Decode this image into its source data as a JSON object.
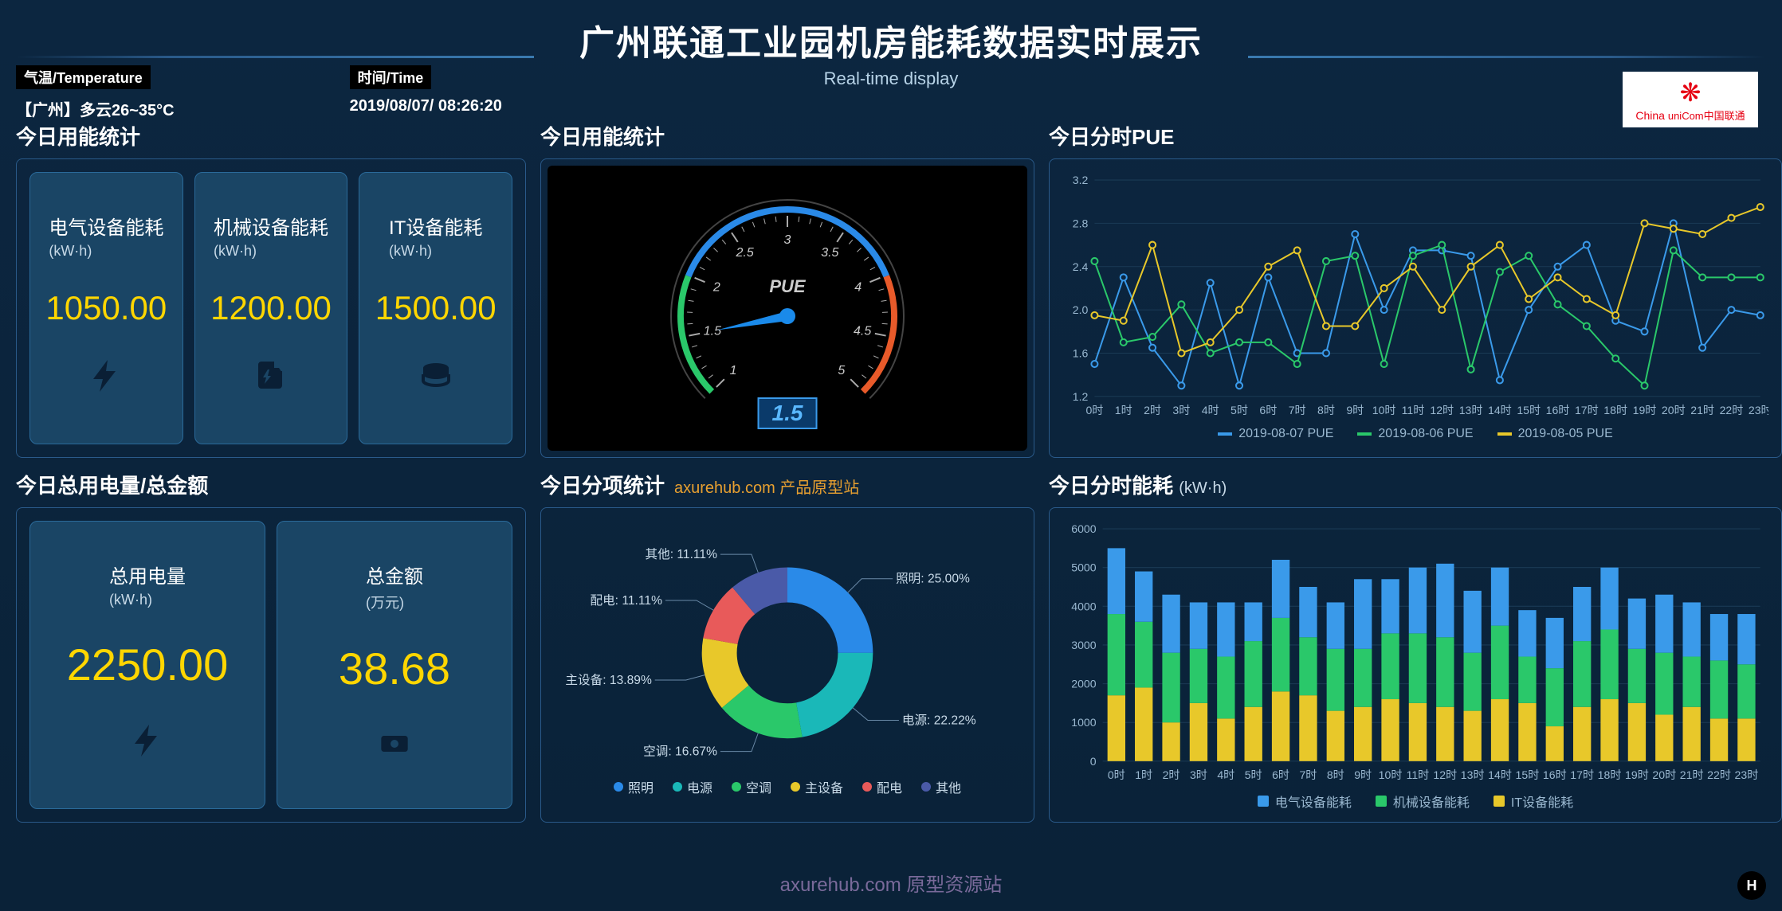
{
  "header": {
    "title": "广州联通工业园机房能耗数据实时展示",
    "subtitle": "Real-time display"
  },
  "logo": {
    "brand_top": "China",
    "brand_bottom": "uniCom中国联通"
  },
  "info": {
    "temp_label": "气温/Temperature",
    "temp_value": "【广州】多云26~35°C",
    "time_label": "时间/Time",
    "time_value": "2019/08/07/ 08:26:20"
  },
  "panels": {
    "energy_stats": {
      "title": "今日用能统计",
      "cards": [
        {
          "label": "电气设备能耗",
          "unit": "(kW·h)",
          "value": "1050.00",
          "icon": "bolt"
        },
        {
          "label": "机械设备能耗",
          "unit": "(kW·h)",
          "value": "1200.00",
          "icon": "charger"
        },
        {
          "label": "IT设备能耗",
          "unit": "(kW·h)",
          "value": "1500.00",
          "icon": "coins"
        }
      ]
    },
    "gauge": {
      "title": "今日用能统计",
      "label": "PUE",
      "value": "1.5",
      "min": 1,
      "max": 5,
      "ticks": [
        "1",
        "1.5",
        "2",
        "2.5",
        "3",
        "3.5",
        "4",
        "4.5",
        "5"
      ],
      "arc_colors": {
        "low": "#2ac86a",
        "mid": "#2a8ae8",
        "high": "#e85a2a"
      },
      "needle_color": "#1a8aea",
      "background": "#000000"
    },
    "pue_line": {
      "title": "今日分时PUE",
      "ylim": [
        1.2,
        3.2
      ],
      "ystep": 0.4,
      "xlabels": [
        "0时",
        "1时",
        "2时",
        "3时",
        "4时",
        "5时",
        "6时",
        "7时",
        "8时",
        "9时",
        "10时",
        "11时",
        "12时",
        "13时",
        "14时",
        "15时",
        "16时",
        "17时",
        "18时",
        "19时",
        "20时",
        "21时",
        "22时",
        "23时"
      ],
      "series": [
        {
          "name": "2019-08-07 PUE",
          "color": "#3a9aea",
          "values": [
            1.5,
            2.3,
            1.65,
            1.3,
            2.25,
            1.3,
            2.3,
            1.6,
            1.6,
            2.7,
            2.0,
            2.55,
            2.55,
            2.5,
            1.35,
            2.0,
            2.4,
            2.6,
            1.9,
            1.8,
            2.8,
            1.65,
            2.0,
            1.95
          ]
        },
        {
          "name": "2019-08-06 PUE",
          "color": "#2ac86a",
          "values": [
            2.45,
            1.7,
            1.75,
            2.05,
            1.6,
            1.7,
            1.7,
            1.5,
            2.45,
            2.5,
            1.5,
            2.5,
            2.6,
            1.45,
            2.35,
            2.5,
            2.05,
            1.85,
            1.55,
            1.3,
            2.55,
            2.3,
            2.3,
            2.3
          ]
        },
        {
          "name": "2019-08-05 PUE",
          "color": "#e8c82a",
          "values": [
            1.95,
            1.9,
            2.6,
            1.6,
            1.7,
            2.0,
            2.4,
            2.55,
            1.85,
            1.85,
            2.2,
            2.4,
            2.0,
            2.4,
            2.6,
            2.1,
            2.3,
            2.1,
            1.95,
            2.8,
            2.75,
            2.7,
            2.85,
            2.95
          ]
        }
      ]
    },
    "totals": {
      "title": "今日总用电量/总金额",
      "cards": [
        {
          "label": "总用电量",
          "unit": "(kW·h)",
          "value": "2250.00",
          "icon": "bolt"
        },
        {
          "label": "总金额",
          "unit": "(万元)",
          "value": "38.68",
          "icon": "cash"
        }
      ]
    },
    "donut": {
      "title": "今日分项统计",
      "link_text": "axurehub.com 产品原型站",
      "slices": [
        {
          "name": "照明",
          "pct": 25.0,
          "color": "#2a8ae8"
        },
        {
          "name": "电源",
          "pct": 22.22,
          "color": "#1ab8b8"
        },
        {
          "name": "空调",
          "pct": 16.67,
          "color": "#2ac86a"
        },
        {
          "name": "主设备",
          "pct": 13.89,
          "color": "#e8c82a"
        },
        {
          "name": "配电",
          "pct": 11.11,
          "color": "#e85a5a"
        },
        {
          "name": "其他",
          "pct": 11.11,
          "color": "#4a5aa8"
        }
      ]
    },
    "hourly_bar": {
      "title": "今日分时能耗",
      "unit": "(kW·h)",
      "ylim": [
        0,
        6000
      ],
      "ystep": 1000,
      "xlabels": [
        "0时",
        "1时",
        "2时",
        "3时",
        "4时",
        "5时",
        "6时",
        "7时",
        "8时",
        "9时",
        "10时",
        "11时",
        "12时",
        "13时",
        "14时",
        "15时",
        "16时",
        "17时",
        "18时",
        "19时",
        "20时",
        "21时",
        "22时",
        "23时"
      ],
      "series": [
        {
          "name": "电气设备能耗",
          "color": "#3a9aea"
        },
        {
          "name": "机械设备能耗",
          "color": "#2ac86a"
        },
        {
          "name": "IT设备能耗",
          "color": "#e8c82a"
        }
      ],
      "stacks": [
        [
          1700,
          2100,
          1700
        ],
        [
          1300,
          1700,
          1900
        ],
        [
          1500,
          1800,
          1000
        ],
        [
          1200,
          1400,
          1500
        ],
        [
          1400,
          1600,
          1100
        ],
        [
          1000,
          1700,
          1400
        ],
        [
          1500,
          1900,
          1800
        ],
        [
          1300,
          1500,
          1700
        ],
        [
          1200,
          1600,
          1300
        ],
        [
          1800,
          1500,
          1400
        ],
        [
          1400,
          1700,
          1600
        ],
        [
          1700,
          1800,
          1500
        ],
        [
          1900,
          1800,
          1400
        ],
        [
          1600,
          1500,
          1300
        ],
        [
          1500,
          1900,
          1600
        ],
        [
          1200,
          1200,
          1500
        ],
        [
          1300,
          1500,
          900
        ],
        [
          1400,
          1700,
          1400
        ],
        [
          1600,
          1800,
          1600
        ],
        [
          1300,
          1400,
          1500
        ],
        [
          1500,
          1600,
          1200
        ],
        [
          1400,
          1300,
          1400
        ],
        [
          1200,
          1500,
          1100
        ],
        [
          1300,
          1400,
          1100
        ]
      ]
    }
  },
  "footer": {
    "text": "axurehub.com 原型资源站",
    "badge": "H"
  }
}
